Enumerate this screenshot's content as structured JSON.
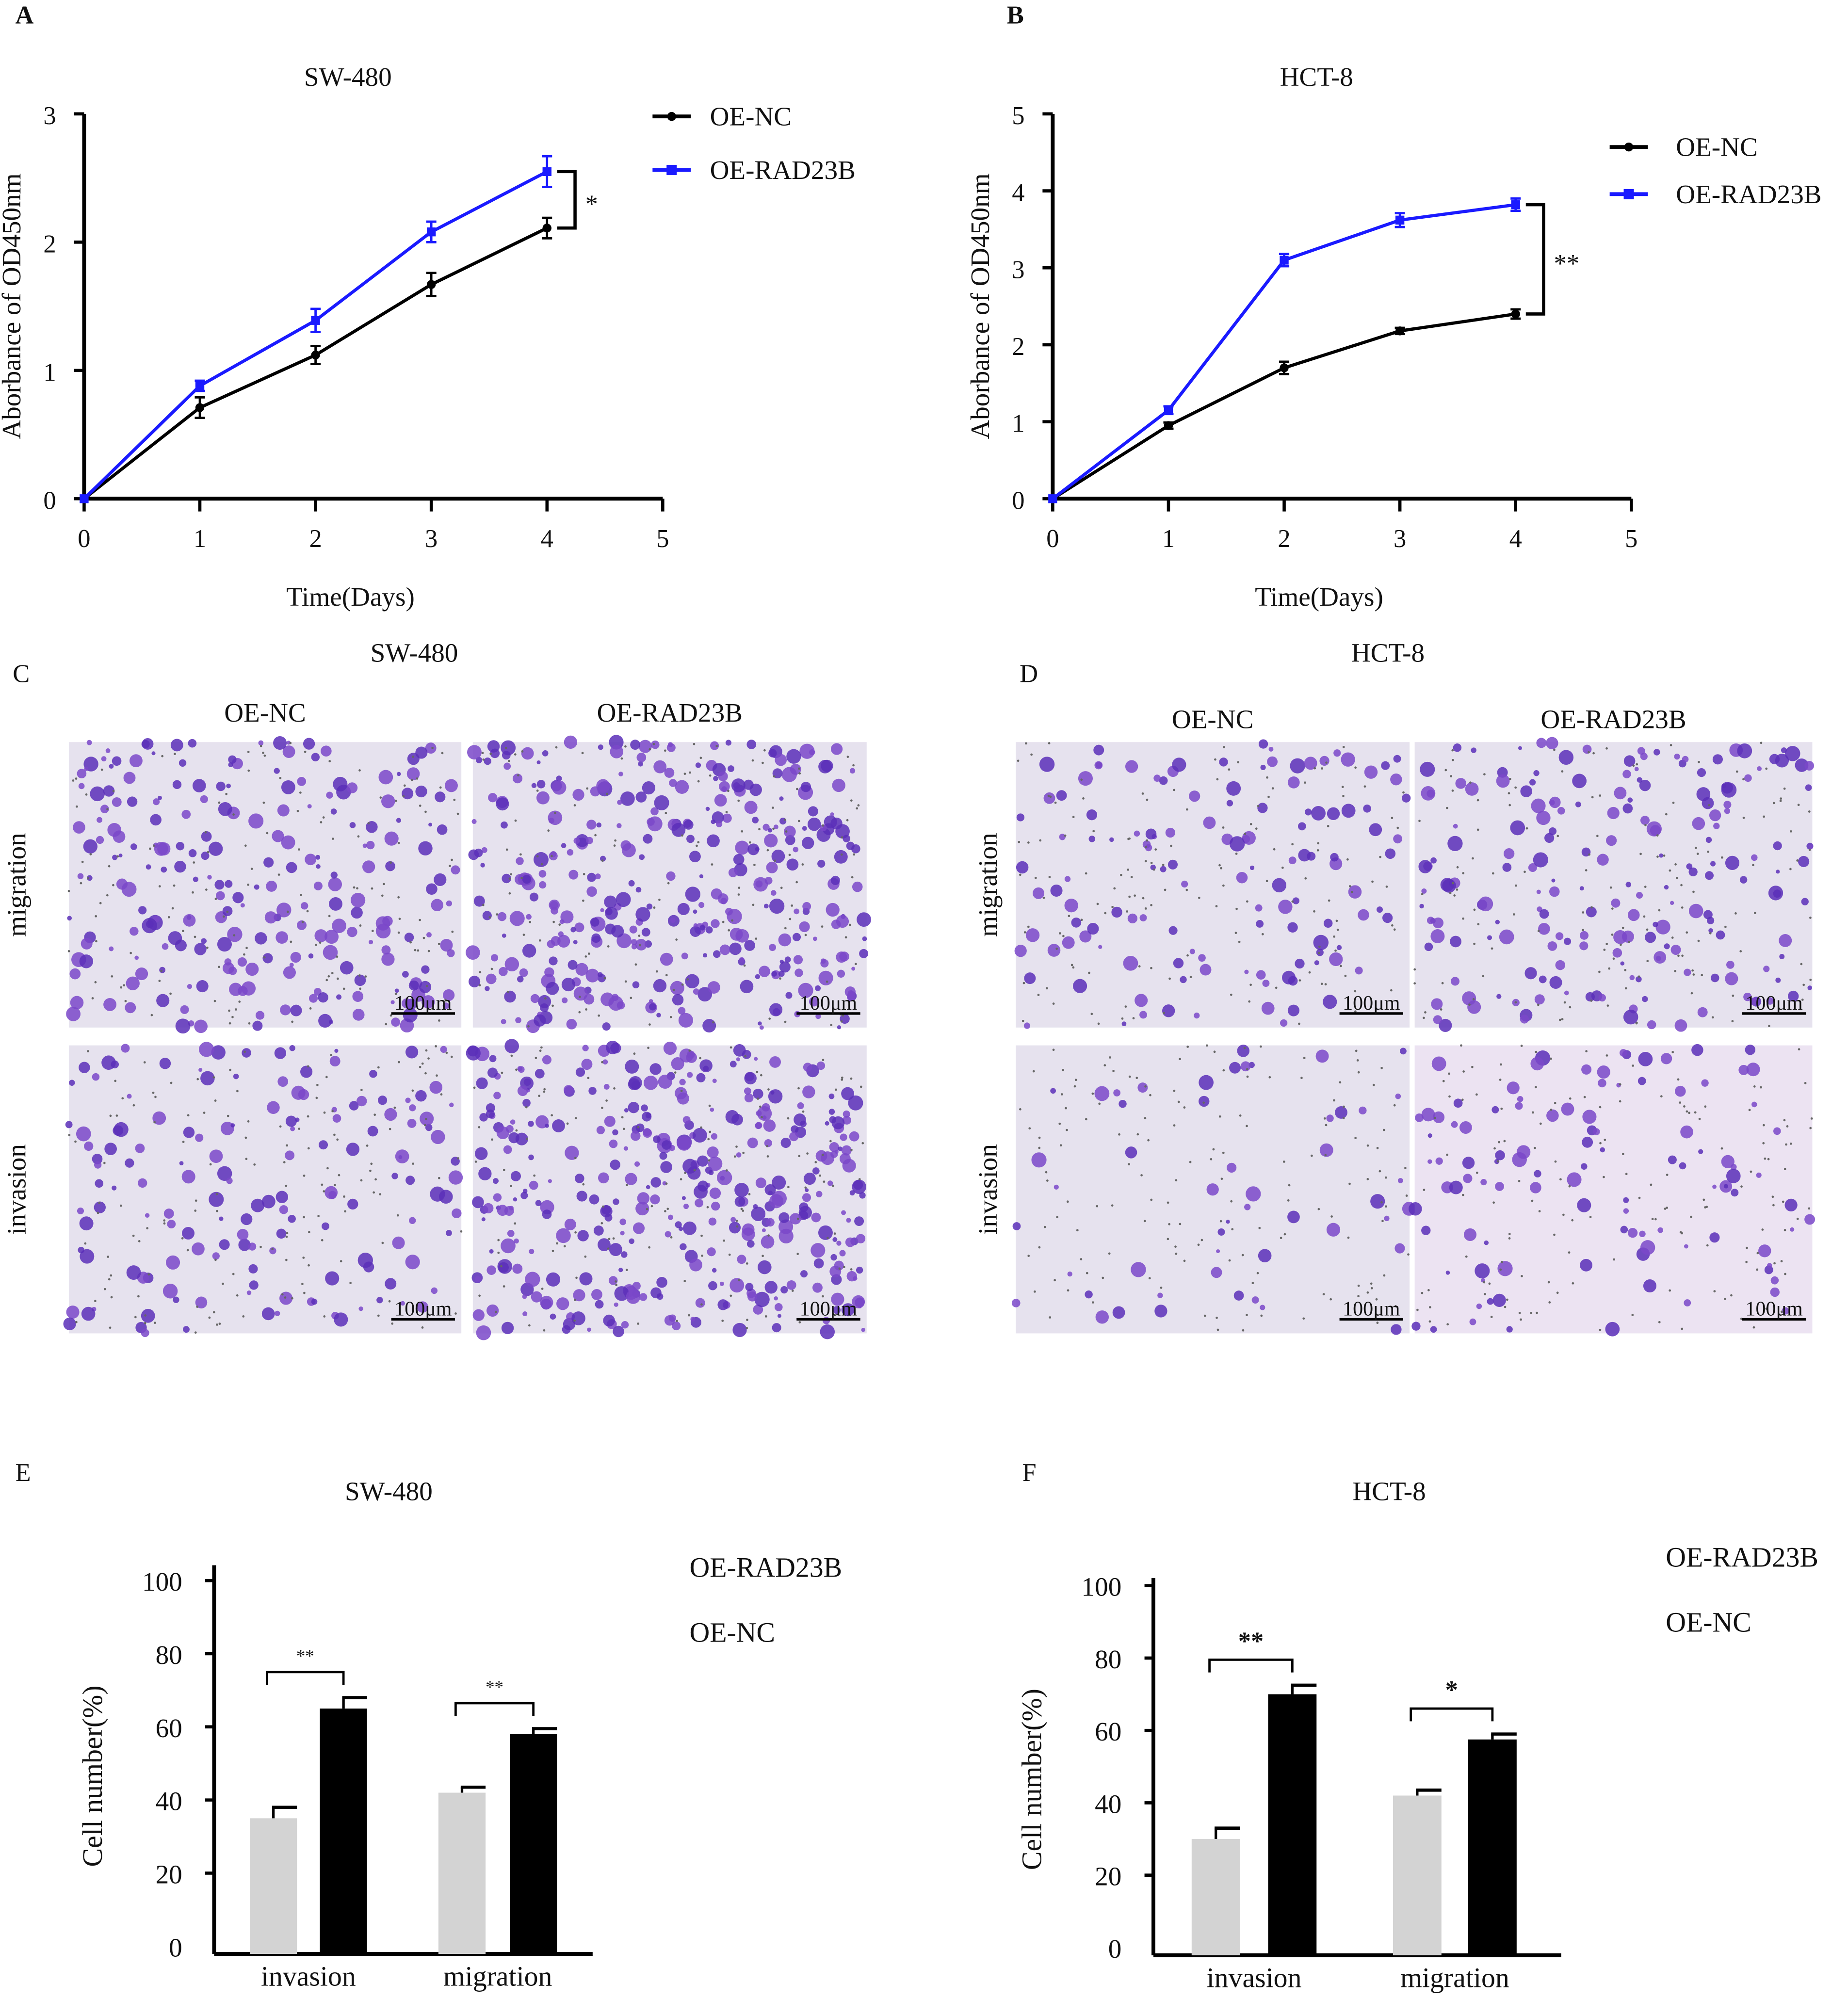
{
  "panel_labels": [
    "A",
    "B",
    "C",
    "D",
    "E",
    "F"
  ],
  "chart_data": [
    {
      "type": "line",
      "panel": "A",
      "title": "SW-480",
      "xlabel": "Time(Days)",
      "ylabel": "Aborbance of OD450nm",
      "x": [
        0,
        1,
        2,
        3,
        4
      ],
      "xlim": [
        0,
        5
      ],
      "ylim": [
        0,
        3
      ],
      "xticks": [
        "0",
        "1",
        "2",
        "3",
        "4",
        "5"
      ],
      "yticks": [
        "0",
        "1",
        "2",
        "3"
      ],
      "legend": "top-right",
      "series": [
        {
          "name": "OE-NC",
          "color": "#000000",
          "values": [
            0,
            0.71,
            1.12,
            1.67,
            2.11
          ],
          "errors": [
            0,
            0.08,
            0.07,
            0.09,
            0.08
          ]
        },
        {
          "name": "OE-RAD23B",
          "color": "#1a1aff",
          "values": [
            0,
            0.88,
            1.39,
            2.08,
            2.55
          ],
          "errors": [
            0,
            0.04,
            0.09,
            0.08,
            0.12
          ]
        }
      ],
      "annotation": "*"
    },
    {
      "type": "line",
      "panel": "B",
      "title": "HCT-8",
      "xlabel": "Time(Days)",
      "ylabel": "Aborbance of OD450nm",
      "x": [
        0,
        1,
        2,
        3,
        4
      ],
      "xlim": [
        0,
        5
      ],
      "ylim": [
        0,
        5
      ],
      "xticks": [
        "0",
        "1",
        "2",
        "3",
        "4",
        "5"
      ],
      "yticks": [
        "0",
        "1",
        "2",
        "3",
        "4",
        "5"
      ],
      "legend": "top-right",
      "series": [
        {
          "name": "OE-NC",
          "color": "#000000",
          "values": [
            0,
            0.95,
            1.7,
            2.18,
            2.4
          ],
          "errors": [
            0,
            0.04,
            0.08,
            0.04,
            0.06
          ]
        },
        {
          "name": "OE-RAD23B",
          "color": "#1a1aff",
          "values": [
            0,
            1.15,
            3.1,
            3.62,
            3.82
          ],
          "errors": [
            0,
            0.05,
            0.08,
            0.09,
            0.08
          ]
        }
      ],
      "annotation": "**"
    },
    {
      "type": "bar",
      "panel": "E",
      "title": "SW-480",
      "ylabel": "Cell number(%)",
      "categories": [
        "invasion",
        "migration"
      ],
      "ylim": [
        0,
        100
      ],
      "yticks": [
        "0",
        "20",
        "40",
        "60",
        "80",
        "100"
      ],
      "legend": "top-right",
      "series": [
        {
          "name": "OE-NC",
          "color": "#d3d3d3",
          "values": [
            35,
            42
          ],
          "errors": [
            3,
            1.5
          ]
        },
        {
          "name": "OE-RAD23B",
          "color": "#000000",
          "values": [
            65,
            58
          ],
          "errors": [
            3,
            1.5
          ]
        }
      ],
      "annotations": [
        "**",
        "**"
      ]
    },
    {
      "type": "bar",
      "panel": "F",
      "title": "HCT-8",
      "ylabel": "Cell number(%)",
      "categories": [
        "invasion",
        "migration"
      ],
      "ylim": [
        0,
        100
      ],
      "yticks": [
        "0",
        "20",
        "40",
        "60",
        "80",
        "100"
      ],
      "legend": "top-right",
      "series": [
        {
          "name": "OE-NC",
          "color": "#d3d3d3",
          "values": [
            30,
            42
          ],
          "errors": [
            3,
            1.5
          ]
        },
        {
          "name": "OE-RAD23B",
          "color": "#000000",
          "values": [
            70,
            57.5
          ],
          "errors": [
            2.5,
            1.5
          ]
        }
      ],
      "annotations": [
        "**",
        "*"
      ]
    }
  ],
  "micrographs": [
    {
      "panel": "C",
      "title": "SW-480",
      "columns": [
        "OE-NC",
        "OE-RAD23B"
      ],
      "rows": [
        "migration",
        "invasion"
      ],
      "scale_bar": "100μm",
      "density": [
        [
          0.55,
          0.85
        ],
        [
          0.35,
          0.9
        ]
      ]
    },
    {
      "panel": "D",
      "title": "HCT-8",
      "columns": [
        "OE-NC",
        "OE-RAD23B"
      ],
      "rows": [
        "migration",
        "invasion"
      ],
      "scale_bar": "100μm",
      "density": [
        [
          0.3,
          0.45
        ],
        [
          0.12,
          0.25
        ]
      ]
    }
  ]
}
